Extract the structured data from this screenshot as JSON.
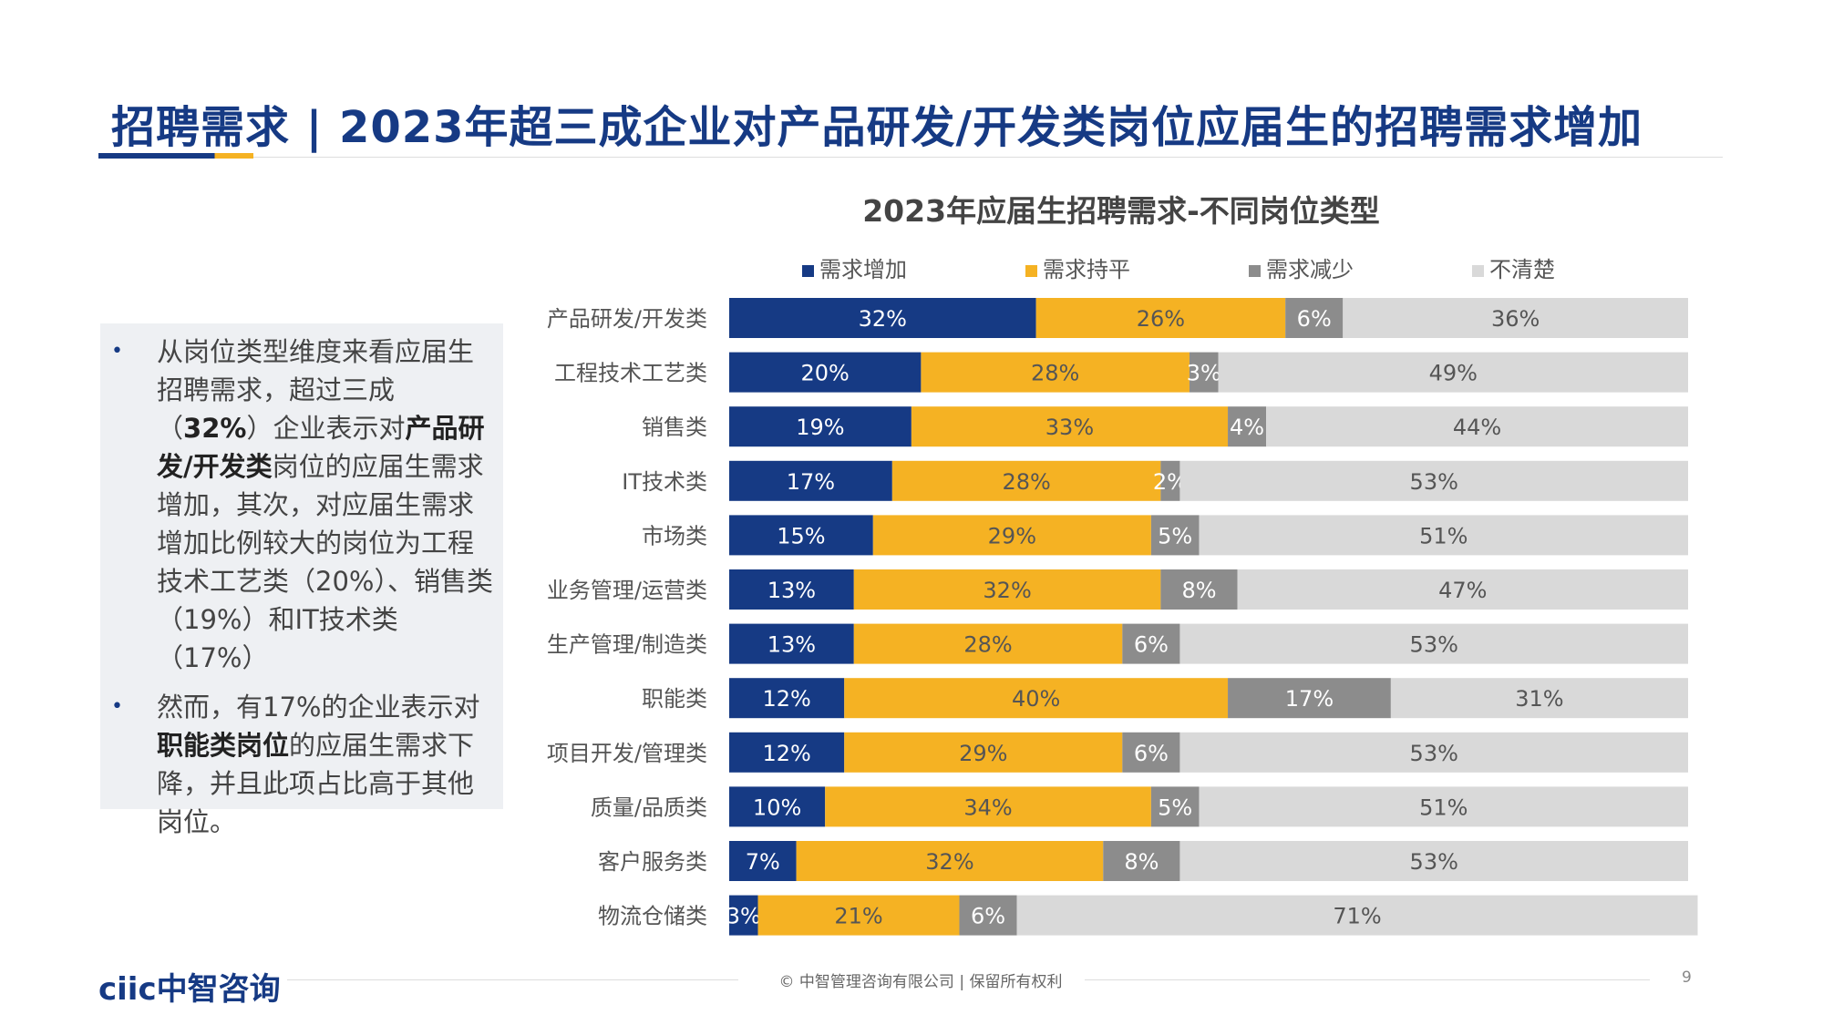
{
  "page": {
    "title": "招聘需求 | 2023年超三成企业对产品研发/开发类岗位应届生的招聘需求增加",
    "accent_color": "#163a84",
    "secondary_color": "#f5b223"
  },
  "summary": {
    "bullet1": {
      "p1": "从岗位类型维度来看应届生招聘需求，超过三成（",
      "b1": "32%",
      "p2": "）企业表示对",
      "b2": "产品研发/开发类",
      "p3": "岗位的应届生需求增加，其次，对应届生需求增加比例较大的岗位为工程技术工艺类（20%）、销售类（19%）和IT技术类（17%）"
    },
    "bullet2": {
      "p1": "然而，有17%的企业表示对",
      "b1": "职能类岗位",
      "p2": "的应届生需求下降，并且此项占比高于其他岗位。"
    }
  },
  "chart_data": {
    "type": "bar",
    "orientation": "horizontal",
    "stacked": true,
    "percent_stacked": true,
    "title": "2023年应届生招聘需求-不同岗位类型",
    "legend_position": "top",
    "categories": [
      "产品研发/开发类",
      "工程技术工艺类",
      "销售类",
      "IT技术类",
      "市场类",
      "业务管理/运营类",
      "生产管理/制造类",
      "职能类",
      "项目开发/管理类",
      "质量/品质类",
      "客户服务类",
      "物流仓储类"
    ],
    "series": [
      {
        "name": "需求增加",
        "color": "#163a84",
        "values": [
          32,
          20,
          19,
          17,
          15,
          13,
          13,
          12,
          12,
          10,
          7,
          3
        ]
      },
      {
        "name": "需求持平",
        "color": "#f5b223",
        "values": [
          26,
          28,
          33,
          28,
          29,
          32,
          28,
          40,
          29,
          34,
          32,
          21
        ]
      },
      {
        "name": "需求减少",
        "color": "#8c8c8c",
        "values": [
          6,
          3,
          4,
          2,
          5,
          8,
          6,
          17,
          6,
          5,
          8,
          6
        ]
      },
      {
        "name": "不清楚",
        "color": "#d9d9d9",
        "values": [
          36,
          49,
          44,
          53,
          51,
          47,
          53,
          31,
          53,
          51,
          53,
          71
        ]
      }
    ],
    "value_suffix": "%"
  },
  "footer": {
    "logo_text": "ciic中智咨询",
    "copyright": "© 中智管理咨询有限公司 | 保留所有权利",
    "page_number": "9"
  }
}
